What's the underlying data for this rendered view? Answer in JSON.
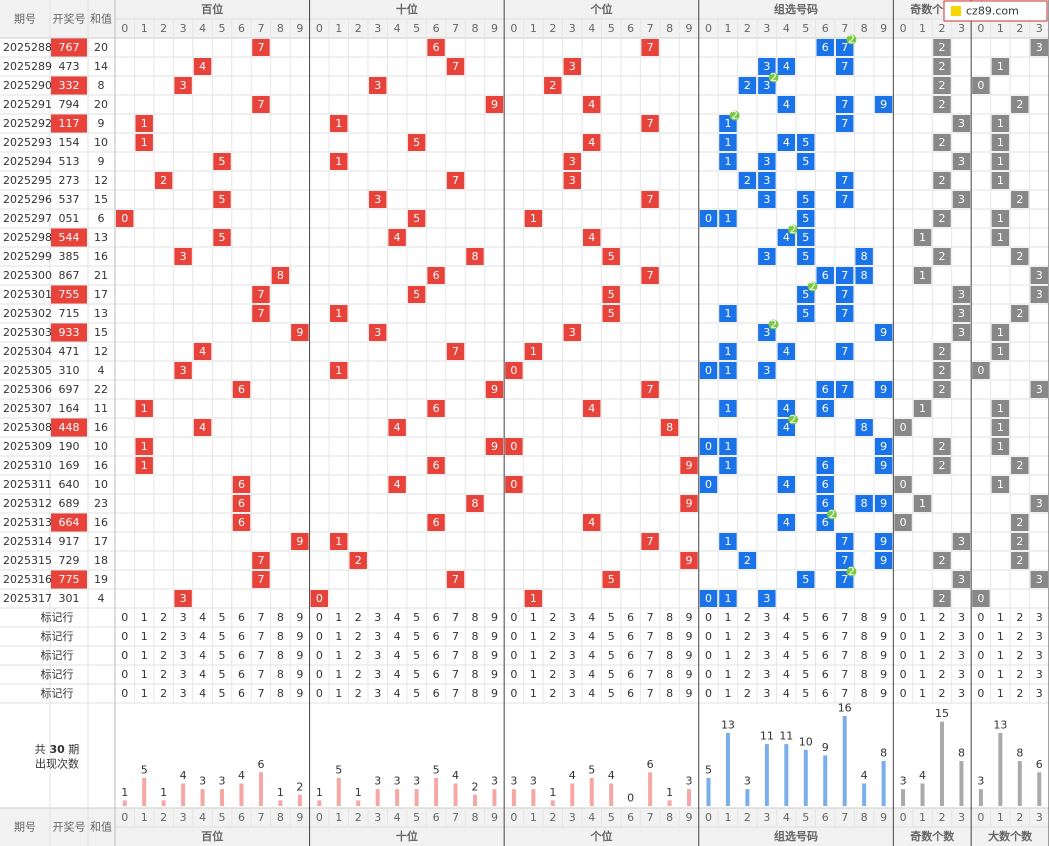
{
  "header": {
    "issue": "期号",
    "number": "开奖号",
    "sum": "和值",
    "watermark": "cz89.com"
  },
  "sections": [
    {
      "title": "百位",
      "columns": [
        0,
        1,
        2,
        3,
        4,
        5,
        6,
        7,
        8,
        9
      ],
      "counts": [
        1,
        5,
        1,
        4,
        3,
        3,
        4,
        6,
        1,
        2
      ]
    },
    {
      "title": "十位",
      "columns": [
        0,
        1,
        2,
        3,
        4,
        5,
        6,
        7,
        8,
        9
      ],
      "counts": [
        1,
        5,
        1,
        3,
        3,
        3,
        5,
        4,
        2,
        3
      ]
    },
    {
      "title": "个位",
      "columns": [
        0,
        1,
        2,
        3,
        4,
        5,
        6,
        7,
        8,
        9
      ],
      "counts": [
        3,
        3,
        1,
        4,
        5,
        4,
        0,
        6,
        1,
        3
      ]
    },
    {
      "title": "组选号码",
      "columns": [
        0,
        1,
        2,
        3,
        4,
        5,
        6,
        7,
        8,
        9
      ],
      "counts": [
        5,
        13,
        3,
        11,
        11,
        10,
        9,
        16,
        4,
        8
      ]
    },
    {
      "title": "奇数个数",
      "columns": [
        0,
        1,
        2,
        3
      ],
      "counts": [
        3,
        4,
        15,
        8
      ]
    },
    {
      "title": "大数个数",
      "columns": [
        0,
        1,
        2,
        3
      ],
      "counts": [
        3,
        13,
        8,
        6
      ]
    }
  ],
  "rows": [
    {
      "issue": "2025288",
      "number": "767",
      "sum": 20,
      "hundreds": 7,
      "tens": 6,
      "ones": 7,
      "group": [
        6,
        7
      ],
      "repeat": {
        "digit": 7,
        "count": 2
      },
      "odd": 2,
      "big": 3
    },
    {
      "issue": "2025289",
      "number": "473",
      "sum": 14,
      "hundreds": 4,
      "tens": 7,
      "ones": 3,
      "group": [
        3,
        4,
        7
      ],
      "odd": 2,
      "big": 1
    },
    {
      "issue": "2025290",
      "number": "332",
      "sum": 8,
      "hundreds": 3,
      "tens": 3,
      "ones": 2,
      "group": [
        2,
        3
      ],
      "repeat": {
        "digit": 3,
        "count": 2
      },
      "odd": 2,
      "big": 0
    },
    {
      "issue": "2025291",
      "number": "794",
      "sum": 20,
      "hundreds": 7,
      "tens": 9,
      "ones": 4,
      "group": [
        4,
        7,
        9
      ],
      "odd": 2,
      "big": 2
    },
    {
      "issue": "2025292",
      "number": "117",
      "sum": 9,
      "hundreds": 1,
      "tens": 1,
      "ones": 7,
      "group": [
        1,
        7
      ],
      "repeat": {
        "digit": 1,
        "count": 2
      },
      "odd": 3,
      "big": 1
    },
    {
      "issue": "2025293",
      "number": "154",
      "sum": 10,
      "hundreds": 1,
      "tens": 5,
      "ones": 4,
      "group": [
        1,
        4,
        5
      ],
      "odd": 2,
      "big": 1
    },
    {
      "issue": "2025294",
      "number": "513",
      "sum": 9,
      "hundreds": 5,
      "tens": 1,
      "ones": 3,
      "group": [
        1,
        3,
        5
      ],
      "odd": 3,
      "big": 1
    },
    {
      "issue": "2025295",
      "number": "273",
      "sum": 12,
      "hundreds": 2,
      "tens": 7,
      "ones": 3,
      "group": [
        2,
        3,
        7
      ],
      "odd": 2,
      "big": 1
    },
    {
      "issue": "2025296",
      "number": "537",
      "sum": 15,
      "hundreds": 5,
      "tens": 3,
      "ones": 7,
      "group": [
        3,
        5,
        7
      ],
      "odd": 3,
      "big": 2
    },
    {
      "issue": "2025297",
      "number": "051",
      "sum": 6,
      "hundreds": 0,
      "tens": 5,
      "ones": 1,
      "group": [
        0,
        1,
        5
      ],
      "odd": 2,
      "big": 1
    },
    {
      "issue": "2025298",
      "number": "544",
      "sum": 13,
      "hundreds": 5,
      "tens": 4,
      "ones": 4,
      "group": [
        4,
        5
      ],
      "repeat": {
        "digit": 4,
        "count": 2
      },
      "odd": 1,
      "big": 1
    },
    {
      "issue": "2025299",
      "number": "385",
      "sum": 16,
      "hundreds": 3,
      "tens": 8,
      "ones": 5,
      "group": [
        3,
        5,
        8
      ],
      "odd": 2,
      "big": 2
    },
    {
      "issue": "2025300",
      "number": "867",
      "sum": 21,
      "hundreds": 8,
      "tens": 6,
      "ones": 7,
      "group": [
        6,
        7,
        8
      ],
      "odd": 1,
      "big": 3
    },
    {
      "issue": "2025301",
      "number": "755",
      "sum": 17,
      "hundreds": 7,
      "tens": 5,
      "ones": 5,
      "group": [
        5,
        7
      ],
      "repeat": {
        "digit": 5,
        "count": 2
      },
      "odd": 3,
      "big": 3
    },
    {
      "issue": "2025302",
      "number": "715",
      "sum": 13,
      "hundreds": 7,
      "tens": 1,
      "ones": 5,
      "group": [
        1,
        5,
        7
      ],
      "odd": 3,
      "big": 2
    },
    {
      "issue": "2025303",
      "number": "933",
      "sum": 15,
      "hundreds": 9,
      "tens": 3,
      "ones": 3,
      "group": [
        3,
        9
      ],
      "repeat": {
        "digit": 3,
        "count": 2
      },
      "odd": 3,
      "big": 1
    },
    {
      "issue": "2025304",
      "number": "471",
      "sum": 12,
      "hundreds": 4,
      "tens": 7,
      "ones": 1,
      "group": [
        1,
        4,
        7
      ],
      "odd": 2,
      "big": 1
    },
    {
      "issue": "2025305",
      "number": "310",
      "sum": 4,
      "hundreds": 3,
      "tens": 1,
      "ones": 0,
      "group": [
        0,
        1,
        3
      ],
      "odd": 2,
      "big": 0
    },
    {
      "issue": "2025306",
      "number": "697",
      "sum": 22,
      "hundreds": 6,
      "tens": 9,
      "ones": 7,
      "group": [
        6,
        7,
        9
      ],
      "odd": 2,
      "big": 3
    },
    {
      "issue": "2025307",
      "number": "164",
      "sum": 11,
      "hundreds": 1,
      "tens": 6,
      "ones": 4,
      "group": [
        1,
        4,
        6
      ],
      "odd": 1,
      "big": 1
    },
    {
      "issue": "2025308",
      "number": "448",
      "sum": 16,
      "hundreds": 4,
      "tens": 4,
      "ones": 8,
      "group": [
        4,
        8
      ],
      "repeat": {
        "digit": 4,
        "count": 2
      },
      "odd": 0,
      "big": 1
    },
    {
      "issue": "2025309",
      "number": "190",
      "sum": 10,
      "hundreds": 1,
      "tens": 9,
      "ones": 0,
      "group": [
        0,
        1,
        9
      ],
      "odd": 2,
      "big": 1
    },
    {
      "issue": "2025310",
      "number": "169",
      "sum": 16,
      "hundreds": 1,
      "tens": 6,
      "ones": 9,
      "group": [
        1,
        6,
        9
      ],
      "odd": 2,
      "big": 2
    },
    {
      "issue": "2025311",
      "number": "640",
      "sum": 10,
      "hundreds": 6,
      "tens": 4,
      "ones": 0,
      "group": [
        0,
        4,
        6
      ],
      "odd": 0,
      "big": 1
    },
    {
      "issue": "2025312",
      "number": "689",
      "sum": 23,
      "hundreds": 6,
      "tens": 8,
      "ones": 9,
      "group": [
        6,
        8,
        9
      ],
      "odd": 1,
      "big": 3
    },
    {
      "issue": "2025313",
      "number": "664",
      "sum": 16,
      "hundreds": 6,
      "tens": 6,
      "ones": 4,
      "group": [
        4,
        6
      ],
      "repeat": {
        "digit": 6,
        "count": 2
      },
      "odd": 0,
      "big": 2
    },
    {
      "issue": "2025314",
      "number": "917",
      "sum": 17,
      "hundreds": 9,
      "tens": 1,
      "ones": 7,
      "group": [
        1,
        7,
        9
      ],
      "odd": 3,
      "big": 2
    },
    {
      "issue": "2025315",
      "number": "729",
      "sum": 18,
      "hundreds": 7,
      "tens": 2,
      "ones": 9,
      "group": [
        2,
        7,
        9
      ],
      "odd": 2,
      "big": 2
    },
    {
      "issue": "2025316",
      "number": "775",
      "sum": 19,
      "hundreds": 7,
      "tens": 7,
      "ones": 5,
      "group": [
        5,
        7
      ],
      "repeat": {
        "digit": 7,
        "count": 2
      },
      "odd": 3,
      "big": 3
    },
    {
      "issue": "2025317",
      "number": "301",
      "sum": 4,
      "hundreds": 3,
      "tens": 0,
      "ones": 1,
      "group": [
        0,
        1,
        3
      ],
      "odd": 2,
      "big": 0
    }
  ],
  "marker_rows": [
    "标记行",
    "标记行",
    "标记行",
    "标记行",
    "标记行"
  ],
  "summary": {
    "prefix": "共",
    "periods": 30,
    "suffix": "期",
    "caption": "出现次数"
  }
}
